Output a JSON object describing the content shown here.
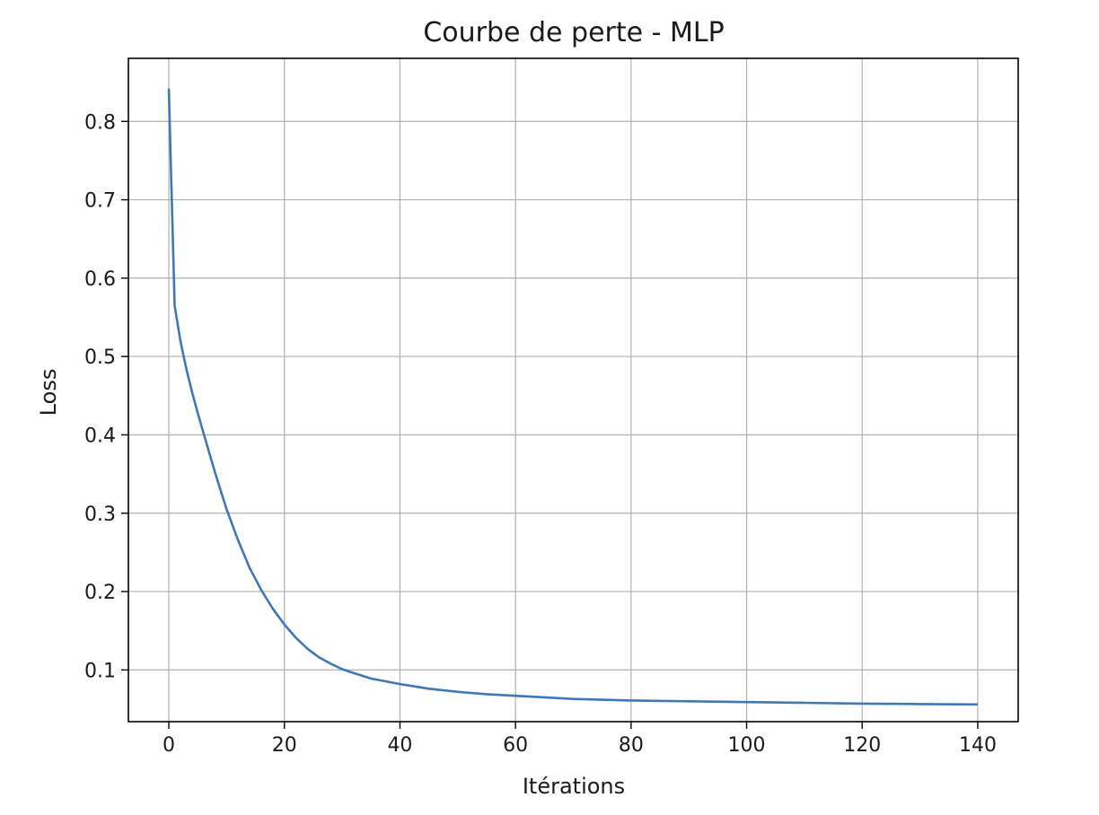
{
  "chart_data": {
    "type": "line",
    "title": "Courbe de perte - MLP",
    "xlabel": "Itérations",
    "ylabel": "Loss",
    "xlim": [
      -7,
      147
    ],
    "ylim": [
      0.034,
      0.8805
    ],
    "xticks": [
      0,
      20,
      40,
      60,
      80,
      100,
      120,
      140
    ],
    "yticks": [
      0.1,
      0.2,
      0.3,
      0.4,
      0.5,
      0.6,
      0.7,
      0.8
    ],
    "grid": true,
    "legend": "none",
    "series": [
      {
        "color": "#3f78b7",
        "x": [
          0,
          1,
          2,
          3,
          4,
          5,
          6,
          7,
          8,
          9,
          10,
          12,
          14,
          16,
          18,
          20,
          22,
          24,
          26,
          28,
          30,
          32,
          35,
          40,
          45,
          50,
          55,
          60,
          65,
          70,
          80,
          90,
          100,
          110,
          120,
          130,
          140
        ],
        "y": [
          0.842,
          0.565,
          0.52,
          0.485,
          0.455,
          0.428,
          0.402,
          0.377,
          0.352,
          0.328,
          0.305,
          0.265,
          0.23,
          0.202,
          0.178,
          0.158,
          0.141,
          0.127,
          0.116,
          0.108,
          0.101,
          0.096,
          0.089,
          0.082,
          0.076,
          0.072,
          0.069,
          0.067,
          0.065,
          0.063,
          0.061,
          0.06,
          0.059,
          0.058,
          0.057,
          0.0565,
          0.056
        ]
      }
    ]
  }
}
